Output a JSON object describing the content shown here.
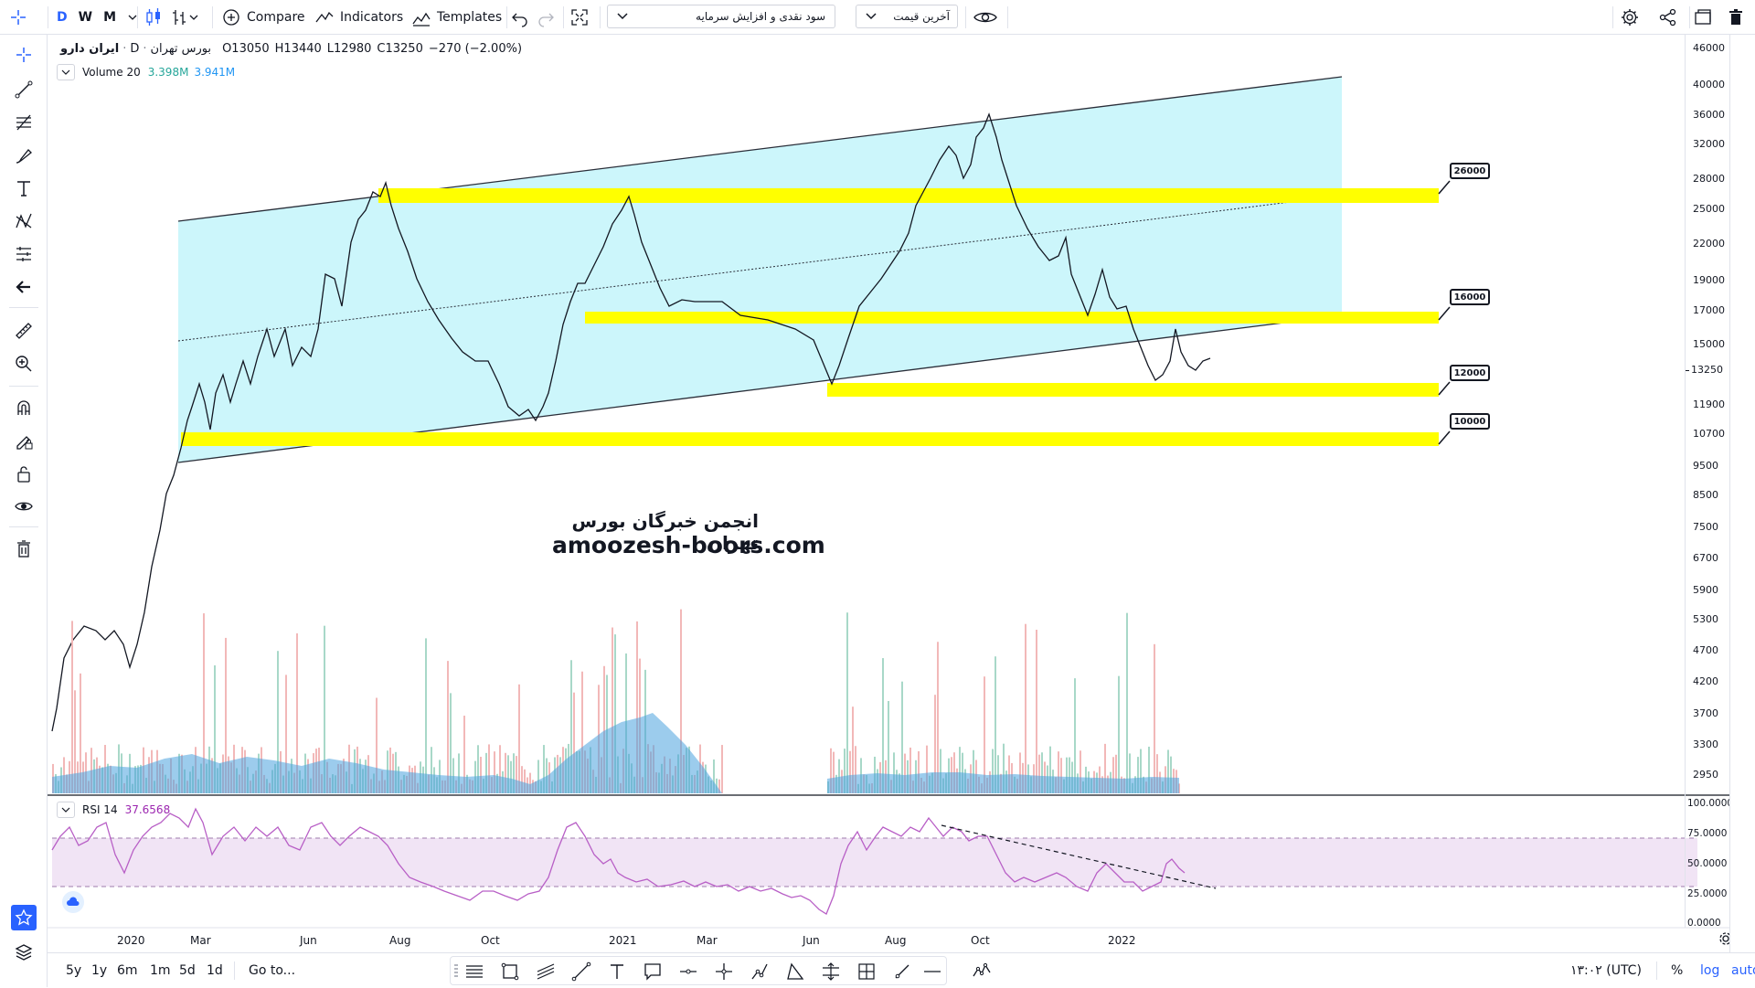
{
  "top_toolbar": {
    "timeframes": [
      "D",
      "W",
      "M"
    ],
    "active_timeframe": "D",
    "compare_label": "Compare",
    "indicators_label": "Indicators",
    "templates_label": "Templates",
    "indicator_dropdown_value": "سود نقدی و افزایش سرمایه",
    "price_source_dropdown_value": "آخرین قیمت"
  },
  "legend": {
    "symbol": "ایران دارو",
    "exchange": "بورس تهران",
    "interval": "D",
    "open": "O13050",
    "high": "H13440",
    "low": "L12980",
    "close": "C13250",
    "change": "−270 (−2.00%)",
    "volume_label": "Volume 20",
    "volume_value_1": "3.398M",
    "volume_value_2": "3.941M",
    "volume_value_1_color": "#26a69a",
    "volume_value_2_color": "#2196f3"
  },
  "watermark": {
    "line1": "انجمن خبرگان بورس تهران",
    "line2": "amoozesh-boors.com"
  },
  "price_axis": {
    "labels": [
      "46000",
      "40000",
      "36000",
      "32000",
      "28000",
      "25000",
      "22000",
      "19000",
      "17000",
      "15000",
      "11900",
      "10700",
      "9500",
      "8500",
      "7500",
      "6700",
      "5900",
      "5300",
      "4700",
      "4200",
      "3700",
      "3300",
      "2950"
    ],
    "current_price": "13250"
  },
  "rsi_axis": {
    "labels": [
      "100.0000",
      "75.0000",
      "50.0000",
      "25.0000",
      "0.0000"
    ]
  },
  "rsi_legend": {
    "label": "RSI 14",
    "value": "37.6568",
    "value_color": "#9c27b0"
  },
  "time_axis": {
    "labels": [
      "2020",
      "Mar",
      "Jun",
      "Aug",
      "Oct",
      "2021",
      "Mar",
      "Jun",
      "Aug",
      "Oct",
      "2022"
    ]
  },
  "price_levels": [
    {
      "label": "26000"
    },
    {
      "label": "16000"
    },
    {
      "label": "12000"
    },
    {
      "label": "10000"
    }
  ],
  "bottom_toolbar": {
    "ranges": [
      "5y",
      "1y",
      "6m",
      "1m",
      "5d",
      "1d"
    ],
    "goto_label": "Go to...",
    "clock": "۱۳:۰۲ (UTC)",
    "percent_label": "%",
    "log_label": "log",
    "auto_label": "auto"
  },
  "colors": {
    "accent": "#2962ff",
    "channel_fill": "#ccf6fb",
    "zone_yellow": "#ffff00",
    "rsi_line": "#b85fc6",
    "rsi_band": "#f1e4f5",
    "volume_area": "#4aa3df"
  }
}
